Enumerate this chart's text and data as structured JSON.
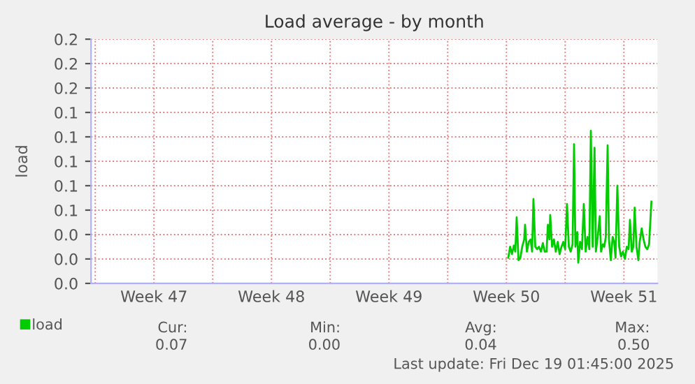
{
  "chart_data": {
    "type": "line",
    "title": "Load average - by month",
    "ylabel": "load",
    "x": [
      "2025-12-10T14:38",
      "2025-12-10T17:17",
      "2025-12-10T19:55",
      "2025-12-10T22:34",
      "2025-12-11T00:43",
      "2025-12-11T02:38",
      "2025-12-11T05:17",
      "2025-12-11T07:55",
      "2025-12-11T10:34",
      "2025-12-11T13:26",
      "2025-12-11T14:38",
      "2025-12-11T17:17",
      "2025-12-11T19:55",
      "2025-12-11T22:34",
      "2025-12-12T00:43",
      "2025-12-12T02:38",
      "2025-12-12T05:17",
      "2025-12-12T07:55",
      "2025-12-12T10:34",
      "2025-12-12T13:26",
      "2025-12-12T16:05",
      "2025-12-12T18:43",
      "2025-12-12T21:22",
      "2025-12-12T23:17",
      "2025-12-13T01:26",
      "2025-12-13T02:38",
      "2025-12-13T05:17",
      "2025-12-13T07:55",
      "2025-12-13T10:34",
      "2025-12-13T13:26",
      "2025-12-13T16:05",
      "2025-12-13T18:43",
      "2025-12-13T21:22",
      "2025-12-14T00:00",
      "2025-12-14T02:38",
      "2025-12-14T05:17",
      "2025-12-14T07:55",
      "2025-12-14T10:34",
      "2025-12-14T12:43",
      "2025-12-14T14:38",
      "2025-12-14T17:17",
      "2025-12-14T18:43",
      "2025-12-14T21:22",
      "2025-12-15T00:00",
      "2025-12-15T02:38",
      "2025-12-15T05:17",
      "2025-12-15T07:55",
      "2025-12-15T10:34",
      "2025-12-15T12:43",
      "2025-12-15T15:22",
      "2025-12-15T18:00",
      "2025-12-15T19:55",
      "2025-12-15T22:34",
      "2025-12-16T01:26",
      "2025-12-16T03:22",
      "2025-12-16T06:00",
      "2025-12-16T07:55",
      "2025-12-16T10:05",
      "2025-12-16T12:43",
      "2025-12-16T14:38",
      "2025-12-16T17:17",
      "2025-12-16T19:55",
      "2025-12-16T22:05",
      "2025-12-17T00:00",
      "2025-12-17T02:38",
      "2025-12-17T05:17",
      "2025-12-17T07:55",
      "2025-12-17T10:34",
      "2025-12-17T13:26",
      "2025-12-17T16:05",
      "2025-12-17T18:43",
      "2025-12-17T20:38",
      "2025-12-17T23:17",
      "2025-12-18T01:26",
      "2025-12-18T03:22",
      "2025-12-18T06:00",
      "2025-12-18T08:38",
      "2025-12-18T10:34",
      "2025-12-18T13:26",
      "2025-12-18T16:05",
      "2025-12-18T18:43",
      "2025-12-18T21:22",
      "2025-12-19T00:00",
      "2025-12-19T03:22"
    ],
    "series": [
      {
        "name": "load",
        "color": "#00cc00",
        "values": [
          0.021,
          0.03,
          0.024,
          0.031,
          0.026,
          0.054,
          0.019,
          0.021,
          0.03,
          0.036,
          0.048,
          0.026,
          0.034,
          0.036,
          0.026,
          0.069,
          0.03,
          0.028,
          0.03,
          0.026,
          0.033,
          0.026,
          0.026,
          0.048,
          0.036,
          0.056,
          0.03,
          0.036,
          0.026,
          0.034,
          0.024,
          0.03,
          0.034,
          0.028,
          0.065,
          0.03,
          0.026,
          0.032,
          0.114,
          0.03,
          0.042,
          0.017,
          0.034,
          0.028,
          0.065,
          0.026,
          0.038,
          0.028,
          0.125,
          0.03,
          0.111,
          0.026,
          0.038,
          0.055,
          0.026,
          0.032,
          0.03,
          0.038,
          0.113,
          0.036,
          0.019,
          0.038,
          0.034,
          0.021,
          0.08,
          0.03,
          0.022,
          0.026,
          0.02,
          0.03,
          0.028,
          0.052,
          0.026,
          0.03,
          0.062,
          0.03,
          0.019,
          0.034,
          0.045,
          0.036,
          0.03,
          0.028,
          0.032,
          0.067
        ]
      }
    ],
    "xlim": [
      "2025-11-15T18:00",
      "2025-12-19T12:00"
    ],
    "xticks": [
      {
        "value": "2025-11-16",
        "label": null
      },
      {
        "value": "2025-11-19T12:00",
        "label": "Week 47"
      },
      {
        "value": "2025-11-23",
        "label": null
      },
      {
        "value": "2025-11-26T12:00",
        "label": "Week 48"
      },
      {
        "value": "2025-11-30",
        "label": null
      },
      {
        "value": "2025-12-03T12:00",
        "label": "Week 49"
      },
      {
        "value": "2025-12-07",
        "label": null
      },
      {
        "value": "2025-12-10T12:00",
        "label": "Week 50"
      },
      {
        "value": "2025-12-14",
        "label": null
      },
      {
        "value": "2025-12-17T12:00",
        "label": "Week 51"
      }
    ],
    "ylim": [
      0,
      0.2
    ],
    "yticks": [
      {
        "value": 0,
        "label": "0.0"
      },
      {
        "value": 0.02,
        "label": "0.0"
      },
      {
        "value": 0.04,
        "label": "0.0"
      },
      {
        "value": 0.06,
        "label": "0.1"
      },
      {
        "value": 0.08,
        "label": "0.1"
      },
      {
        "value": 0.1,
        "label": "0.1"
      },
      {
        "value": 0.12,
        "label": "0.1"
      },
      {
        "value": 0.14,
        "label": "0.1"
      },
      {
        "value": 0.16,
        "label": "0.2"
      },
      {
        "value": 0.18,
        "label": "0.2"
      },
      {
        "value": 0.2,
        "label": "0.2"
      }
    ],
    "grid": true,
    "legend": "bottom left",
    "marker": "none",
    "line_style": "solid",
    "annotations": [
      "Cur:",
      "Min:",
      "Avg:",
      "Max:",
      "0.07",
      "0.00",
      "0.04",
      "0.50",
      "Last update: Fri Dec 19 01:45:00 2025"
    ]
  }
}
